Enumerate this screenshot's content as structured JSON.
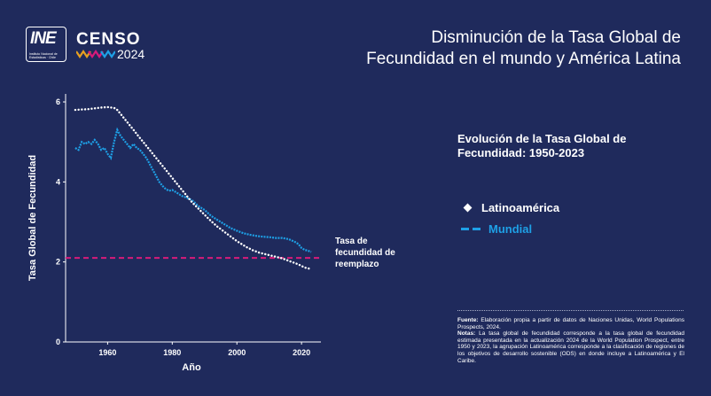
{
  "header": {
    "ine_logo_text": "INE",
    "ine_logo_sub": "Instituto Nacional de Estadísticas · Chile",
    "censo_word": "CENSO",
    "censo_year": "2024",
    "title_line1": "Disminución de la Tasa Global de",
    "title_line2": "Fecundidad en el mundo y América Latina"
  },
  "subtitle_line1": "Evolución de la Tasa Global de",
  "subtitle_line2": "Fecundidad: 1950-2023",
  "legend": {
    "latam": "Latinoamérica",
    "mundial": "Mundial"
  },
  "notes": {
    "source_label": "Fuente:",
    "source_text": "Elaboración propia a partir de datos de Naciones Unidas, World Populations Prospects, 2024.",
    "notes_label": "Notas:",
    "notes_text": "La tasa global de fecundidad corresponde a la tasa global de fecundidad estimada presentada en la actualización 2024 de la World Population Prospect, entre 1950 y 2023, la agrupación Latinoamérica corresponde a la clasificación de regiones de los objetivos de desarrollo sostenible (ODS) en donde incluye a Latinoamérica y El Caribe."
  },
  "colors": {
    "background": "#1f2a5c",
    "latam": "#ffffff",
    "mundial": "#1ea0e6",
    "replacement": "#d81b7a"
  },
  "chart_data": {
    "type": "line",
    "xlabel": "Año",
    "ylabel": "Tasa Global de Fecundidad",
    "xlim": [
      1947,
      2026
    ],
    "ylim": [
      0,
      6.2
    ],
    "x_ticks": [
      1960,
      1980,
      2000,
      2020
    ],
    "y_ticks": [
      0,
      2,
      4,
      6
    ],
    "reference_line": {
      "value": 2.1,
      "label_lines": [
        "Tasa de",
        "fecundidad de",
        "reemplazo"
      ]
    },
    "series": [
      {
        "name": "Latinoamérica",
        "style": "dotted",
        "x": [
          1950,
          1952,
          1954,
          1956,
          1958,
          1960,
          1962,
          1963,
          1964,
          1965,
          1966,
          1967,
          1968,
          1969,
          1970,
          1971,
          1972,
          1973,
          1974,
          1975,
          1976,
          1977,
          1978,
          1979,
          1980,
          1981,
          1982,
          1983,
          1984,
          1985,
          1986,
          1987,
          1988,
          1989,
          1990,
          1991,
          1992,
          1993,
          1994,
          1995,
          1996,
          1997,
          1998,
          1999,
          2000,
          2001,
          2002,
          2003,
          2004,
          2005,
          2006,
          2007,
          2008,
          2009,
          2010,
          2011,
          2012,
          2013,
          2014,
          2015,
          2016,
          2017,
          2018,
          2019,
          2020,
          2021,
          2022,
          2023
        ],
        "values": [
          5.8,
          5.81,
          5.82,
          5.84,
          5.86,
          5.87,
          5.85,
          5.8,
          5.7,
          5.6,
          5.5,
          5.4,
          5.3,
          5.2,
          5.1,
          5.0,
          4.9,
          4.8,
          4.7,
          4.6,
          4.5,
          4.4,
          4.3,
          4.2,
          4.1,
          4.0,
          3.9,
          3.8,
          3.7,
          3.6,
          3.5,
          3.42,
          3.34,
          3.26,
          3.18,
          3.1,
          3.02,
          2.95,
          2.88,
          2.82,
          2.76,
          2.7,
          2.64,
          2.58,
          2.52,
          2.47,
          2.42,
          2.37,
          2.33,
          2.29,
          2.26,
          2.23,
          2.21,
          2.19,
          2.17,
          2.15,
          2.13,
          2.11,
          2.09,
          2.06,
          2.03,
          2.0,
          1.97,
          1.94,
          1.9,
          1.86,
          1.84,
          1.82
        ]
      },
      {
        "name": "Mundial",
        "style": "dashed",
        "x": [
          1950,
          1951,
          1952,
          1953,
          1954,
          1955,
          1956,
          1957,
          1958,
          1959,
          1960,
          1961,
          1962,
          1963,
          1964,
          1965,
          1966,
          1967,
          1968,
          1969,
          1970,
          1971,
          1972,
          1973,
          1974,
          1975,
          1976,
          1977,
          1978,
          1979,
          1980,
          1981,
          1982,
          1983,
          1984,
          1985,
          1986,
          1987,
          1988,
          1989,
          1990,
          1992,
          1994,
          1996,
          1998,
          2000,
          2002,
          2004,
          2006,
          2008,
          2010,
          2012,
          2014,
          2016,
          2018,
          2019,
          2020,
          2021,
          2022,
          2023
        ],
        "values": [
          4.85,
          4.8,
          5.0,
          4.95,
          5.0,
          4.95,
          5.05,
          4.95,
          4.8,
          4.85,
          4.7,
          4.6,
          5.0,
          5.3,
          5.15,
          5.05,
          4.95,
          4.85,
          4.95,
          4.85,
          4.8,
          4.7,
          4.6,
          4.45,
          4.3,
          4.15,
          4.0,
          3.9,
          3.82,
          3.78,
          3.8,
          3.75,
          3.7,
          3.65,
          3.62,
          3.58,
          3.55,
          3.48,
          3.4,
          3.35,
          3.3,
          3.15,
          3.05,
          2.95,
          2.85,
          2.78,
          2.72,
          2.68,
          2.65,
          2.63,
          2.62,
          2.6,
          2.6,
          2.57,
          2.5,
          2.45,
          2.35,
          2.3,
          2.28,
          2.25
        ]
      }
    ]
  }
}
